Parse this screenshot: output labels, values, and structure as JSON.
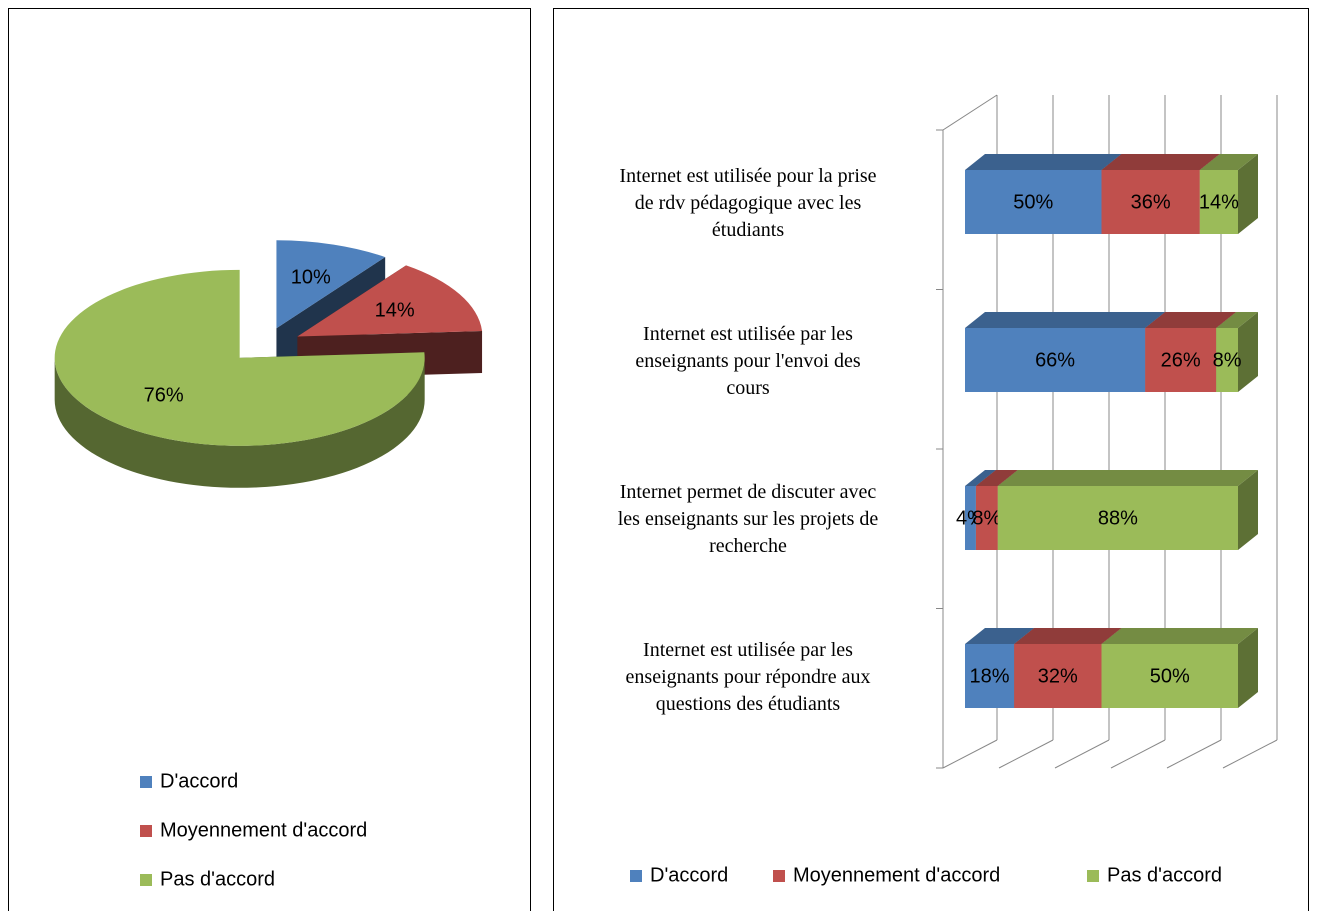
{
  "chart_data": [
    {
      "type": "pie",
      "categories": [
        "D'accord",
        "Moyennement d'accord",
        "Pas d'accord"
      ],
      "values": [
        10,
        14,
        76
      ],
      "value_labels": [
        "10%",
        "14%",
        "76%"
      ],
      "colors": [
        "#4f81bd",
        "#c0504d",
        "#9bbb59"
      ],
      "legend": "bottom"
    },
    {
      "type": "bar",
      "orientation": "horizontal",
      "stacked": true,
      "categories": [
        "Internet est utilisée pour la prise\nde rdv pédagogique avec les\nétudiants",
        "Internet est utilisée par les\nenseignants pour l'envoi des\ncours",
        "Internet permet de discuter avec\nles enseignants sur les projets de\nrecherche",
        "Internet est utilisée par les\nenseignants pour répondre aux\nquestions des étudiants"
      ],
      "series": [
        {
          "name": "D'accord",
          "color": "#4f81bd",
          "values": [
            50,
            66,
            4,
            18
          ],
          "value_labels": [
            "50%",
            "66%",
            "4%",
            "18%"
          ]
        },
        {
          "name": "Moyennement d'accord",
          "color": "#c0504d",
          "values": [
            36,
            26,
            8,
            32
          ],
          "value_labels": [
            "36%",
            "26%",
            "8%",
            "32%"
          ]
        },
        {
          "name": "Pas d'accord",
          "color": "#9bbb59",
          "values": [
            14,
            8,
            88,
            50
          ],
          "value_labels": [
            "14%",
            "8%",
            "88%",
            "50%"
          ]
        }
      ],
      "xlim": [
        0,
        100
      ],
      "xticks": [
        0,
        20,
        40,
        60,
        80,
        100
      ],
      "grid": true,
      "legend": "bottom"
    }
  ]
}
